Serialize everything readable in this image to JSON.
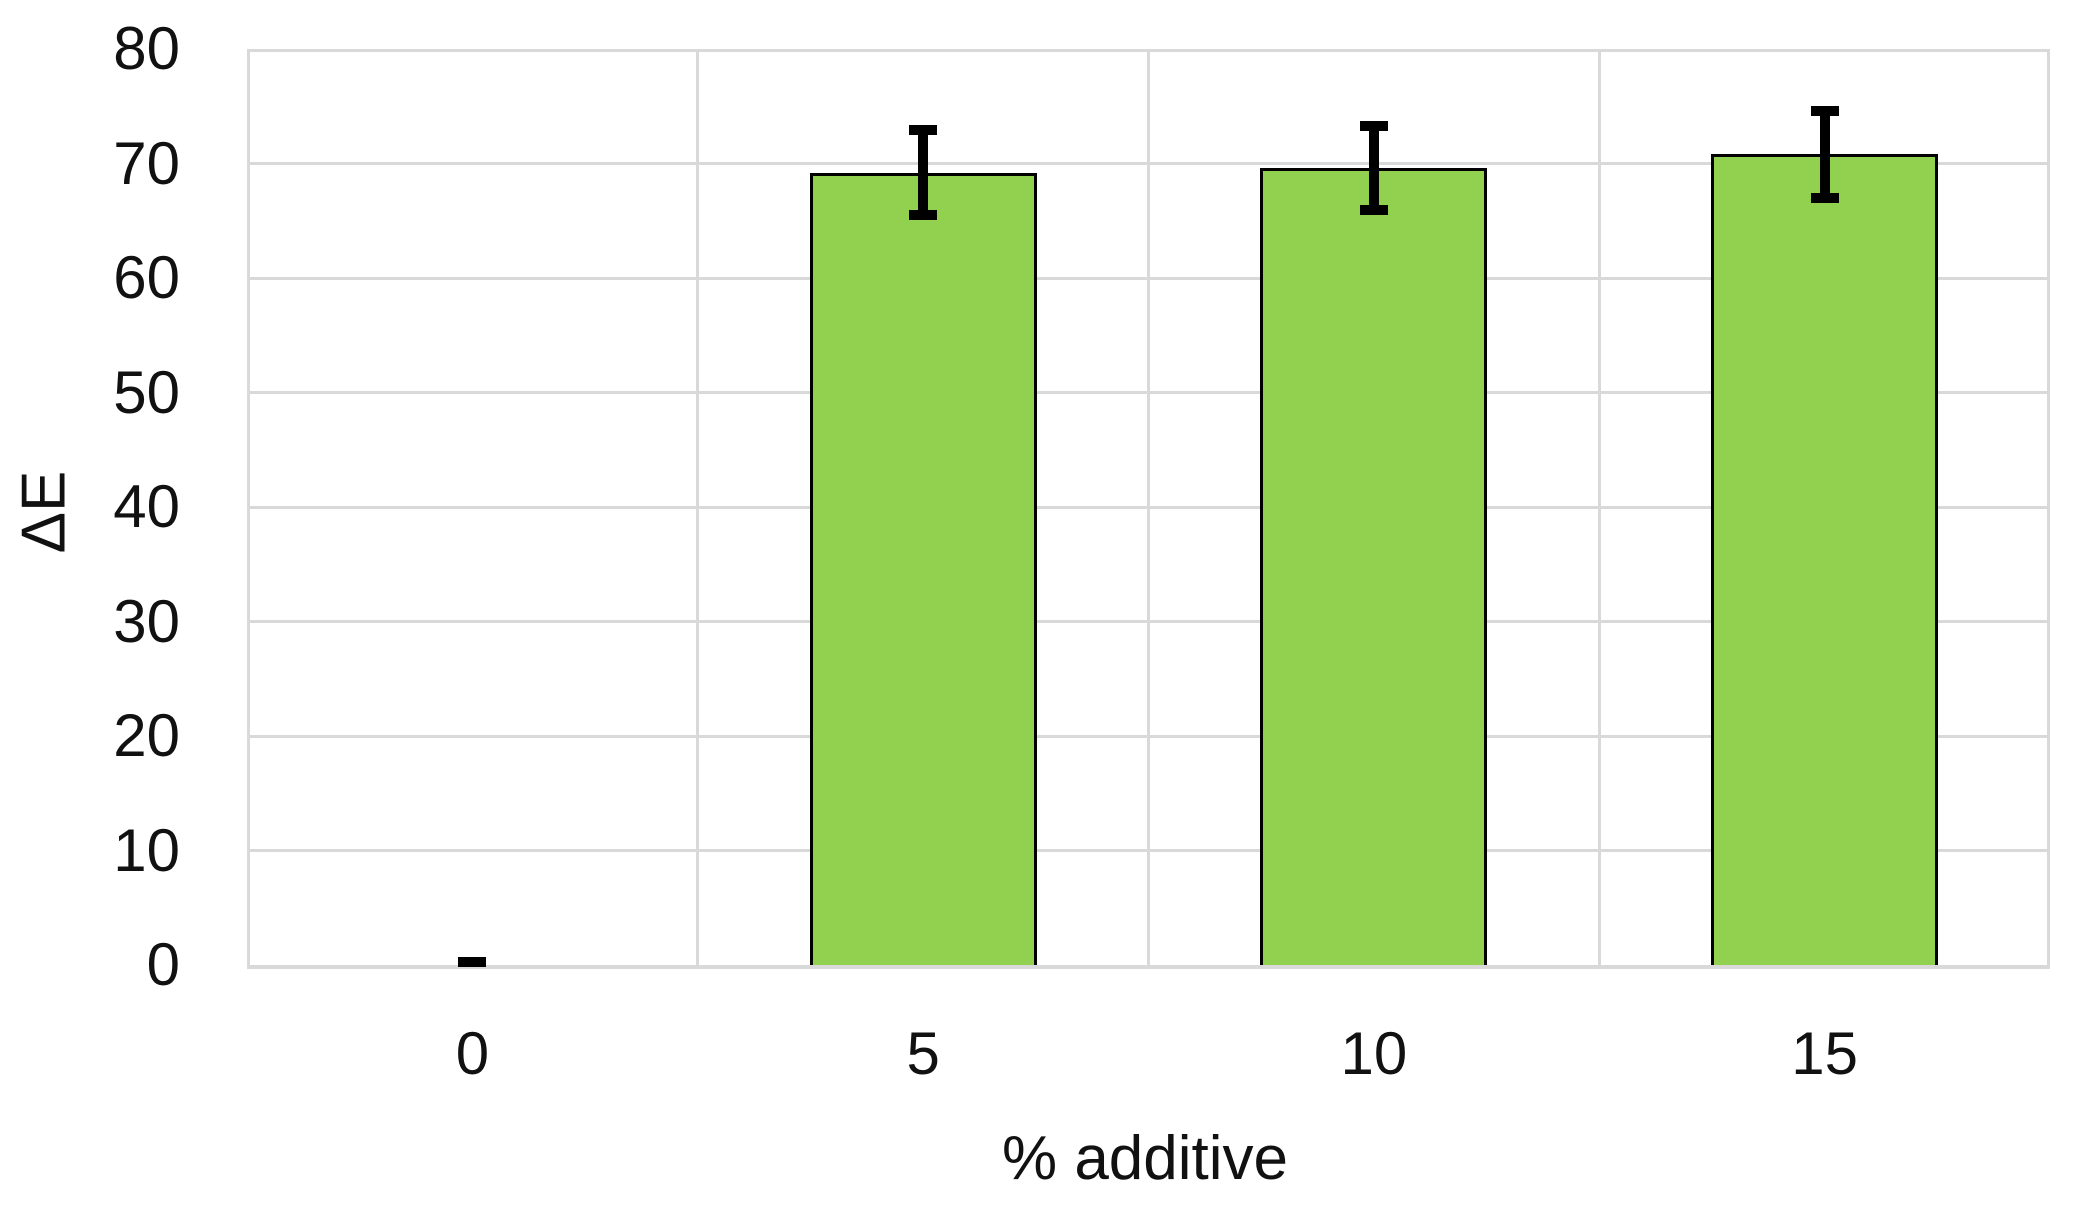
{
  "chart_data": {
    "type": "bar",
    "title": "",
    "xlabel": "% additive",
    "ylabel": "ΔE",
    "categories": [
      "0",
      "5",
      "10",
      "15"
    ],
    "values": [
      0.3,
      69.2,
      69.6,
      70.8
    ],
    "errors": [
      0,
      3.7,
      3.7,
      3.8
    ],
    "ylim": [
      0,
      80
    ],
    "yticks": [
      0,
      10,
      20,
      30,
      40,
      50,
      60,
      70,
      80
    ],
    "grid": "horizontal gridlines every 10 units, vertical gridlines at category boundaries",
    "legend_position": "none",
    "bar_color": "#92D050",
    "bar_border_color": "#000000",
    "error_bar_color": "#000000",
    "gridline_color": "#D9D9D9",
    "text_color": "#111111",
    "background_color": "#FFFFFF"
  }
}
